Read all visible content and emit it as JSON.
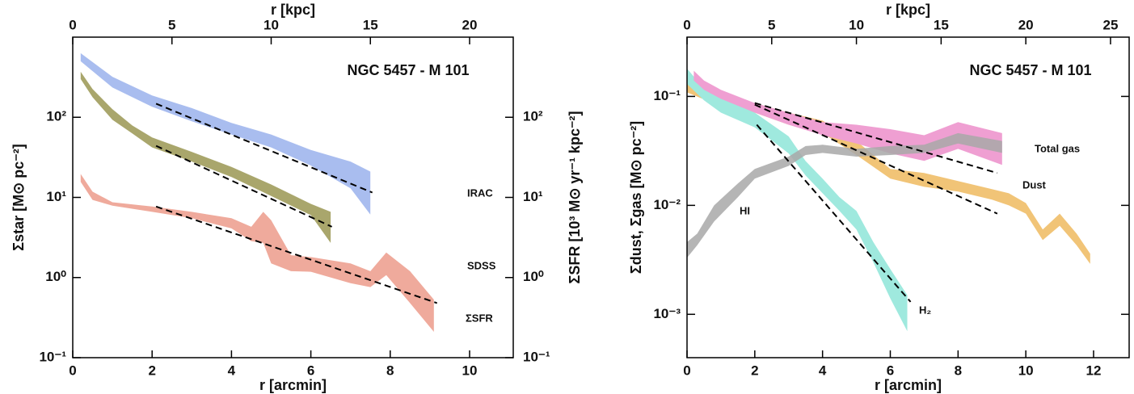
{
  "chart_data": [
    {
      "type": "band",
      "title": "NGC 5457 - M 101",
      "log_y": true,
      "x_label": "r [arcmin]",
      "x2_label": "r [kpc]",
      "y_label": "Σstar [M⊙ pc⁻²]",
      "y2_label": "ΣSFR [10³ M⊙ yr⁻¹ kpc⁻²]",
      "xlim": [
        0,
        11.1
      ],
      "xticks": [
        0,
        2,
        4,
        6,
        8,
        10
      ],
      "x2lim": [
        0,
        22.2
      ],
      "x2ticks": [
        0,
        5,
        10,
        15,
        20
      ],
      "ylim": [
        0.1,
        1000
      ],
      "yticks": [
        {
          "value": 0.1,
          "label": "10⁻¹"
        },
        {
          "value": 1,
          "label": "10⁰"
        },
        {
          "value": 10,
          "label": "10¹"
        },
        {
          "value": 100,
          "label": "10²"
        }
      ],
      "y2lim": [
        0.1,
        1000
      ],
      "y2ticks": [
        {
          "value": 0.1,
          "label": "10⁻¹"
        },
        {
          "value": 1,
          "label": "10⁰"
        },
        {
          "value": 10,
          "label": "10¹"
        },
        {
          "value": 100,
          "label": "10²"
        }
      ],
      "series": [
        {
          "name": "IRAC",
          "color": "#a9bdef",
          "x": [
            0.2,
            1,
            2,
            3,
            4,
            5,
            6,
            7,
            7.5
          ],
          "upper": [
            630,
            320,
            187,
            130,
            85,
            61,
            39,
            28,
            21
          ],
          "lower": [
            500,
            235,
            135,
            89,
            61,
            42,
            25,
            13,
            6.1
          ]
        },
        {
          "name": "SDSS",
          "color": "#a9a66c",
          "x": [
            0.2,
            0.5,
            1,
            1.5,
            2,
            3,
            4,
            5,
            6,
            6.5
          ],
          "upper": [
            370,
            225,
            126,
            79,
            56,
            37,
            24,
            14.5,
            8.3,
            6.6
          ],
          "lower": [
            300,
            178,
            93,
            63,
            42,
            28,
            18,
            10.4,
            6,
            2.7
          ]
        },
        {
          "name": "ΣSFR",
          "color": "#efaa9c",
          "x": [
            0.2,
            0.5,
            1,
            2,
            3,
            4,
            4.5,
            4.8,
            5,
            5.5,
            6,
            7,
            7.5,
            7.9,
            8.5,
            9.1
          ],
          "upper": [
            19.6,
            11.8,
            8.7,
            7.7,
            6.6,
            5.5,
            4.3,
            6.6,
            5.2,
            1.9,
            1.8,
            1.5,
            1.2,
            2.05,
            1.2,
            0.53
          ],
          "lower": [
            15.6,
            9.3,
            7.9,
            6.6,
            5.5,
            4.1,
            2.85,
            2.7,
            1.5,
            1.2,
            1.18,
            0.85,
            0.76,
            1.07,
            0.48,
            0.21
          ]
        }
      ],
      "fits": [
        {
          "x": [
            2.1,
            7.55
          ],
          "values": [
            148,
            11.5
          ]
        },
        {
          "x": [
            2.1,
            6.53
          ],
          "values": [
            44,
            4.3
          ]
        },
        {
          "x": [
            2.1,
            9.18
          ],
          "values": [
            7.7,
            0.48
          ]
        }
      ]
    },
    {
      "type": "band",
      "title": "NGC 5457 - M 101",
      "log_y": true,
      "x_label": "r [arcmin]",
      "x2_label": "r [kpc]",
      "y_label": "Σdust, Σgas [M⊙ pc⁻²]",
      "xlim": [
        0,
        13.05
      ],
      "xticks": [
        0,
        2,
        4,
        6,
        8,
        10,
        12
      ],
      "x2lim": [
        0,
        26.1
      ],
      "x2ticks": [
        0,
        5,
        10,
        15,
        20,
        25
      ],
      "ylim": [
        0.0004,
        0.35
      ],
      "yticks": [
        {
          "value": 0.001,
          "label": "10⁻³"
        },
        {
          "value": 0.01,
          "label": "10⁻²"
        },
        {
          "value": 0.1,
          "label": "10⁻¹"
        }
      ],
      "series": [
        {
          "name": "Dust",
          "color": "#f1c477",
          "x": [
            0,
            1,
            2,
            3,
            4,
            5,
            6,
            7,
            8,
            9,
            9.5,
            10,
            10.5,
            11,
            11.5,
            11.9
          ],
          "upper": [
            0.14,
            0.1,
            0.087,
            0.071,
            0.06,
            0.039,
            0.0216,
            0.0198,
            0.0167,
            0.0141,
            0.0129,
            0.0105,
            0.006,
            0.0084,
            0.0055,
            0.0036
          ],
          "lower": [
            0.109,
            0.081,
            0.071,
            0.055,
            0.046,
            0.029,
            0.0176,
            0.0148,
            0.0134,
            0.0113,
            0.01,
            0.0084,
            0.0048,
            0.0065,
            0.0043,
            0.0029
          ]
        },
        {
          "name": "H₂",
          "color": "#9fe9de",
          "x": [
            0,
            0.5,
            1,
            2,
            3,
            3.5,
            4,
            4.5,
            5,
            5.5,
            6,
            6.5
          ],
          "upper": [
            0.18,
            0.118,
            0.097,
            0.071,
            0.043,
            0.0255,
            0.0176,
            0.0119,
            0.0089,
            0.0046,
            0.0026,
            0.0015
          ],
          "lower": [
            0.13,
            0.092,
            0.071,
            0.052,
            0.03,
            0.0188,
            0.0129,
            0.0089,
            0.006,
            0.003,
            0.0014,
            0.0007
          ]
        },
        {
          "name": "Total gas",
          "color": "#ef9fd2",
          "x": [
            0.2,
            0.5,
            1,
            2,
            3,
            4,
            5,
            6,
            7,
            8,
            9.3
          ],
          "upper": [
            0.172,
            0.14,
            0.115,
            0.087,
            0.071,
            0.058,
            0.055,
            0.05,
            0.044,
            0.058,
            0.046
          ],
          "lower": [
            0.14,
            0.115,
            0.095,
            0.071,
            0.055,
            0.044,
            0.037,
            0.03,
            0.0256,
            0.033,
            0.0235
          ]
        },
        {
          "name": "HI",
          "color": "#a8a8a8",
          "x": [
            0,
            0.3,
            0.8,
            1.5,
            2,
            3,
            3.5,
            4,
            5,
            6,
            7,
            8,
            9.3
          ],
          "upper": [
            0.0046,
            0.0055,
            0.01,
            0.0159,
            0.0216,
            0.028,
            0.035,
            0.036,
            0.033,
            0.035,
            0.036,
            0.046,
            0.039
          ],
          "lower": [
            0.0033,
            0.0043,
            0.0071,
            0.0119,
            0.0176,
            0.023,
            0.029,
            0.0303,
            0.028,
            0.029,
            0.0303,
            0.037,
            0.0303
          ]
        }
      ],
      "fits": [
        {
          "x": [
            2.0,
            9.16
          ],
          "values": [
            0.087,
            0.0198
          ]
        },
        {
          "x": [
            2.0,
            9.16
          ],
          "values": [
            0.084,
            0.0084
          ]
        },
        {
          "x": [
            2.06,
            6.6
          ],
          "values": [
            0.055,
            0.0013
          ]
        }
      ]
    }
  ]
}
